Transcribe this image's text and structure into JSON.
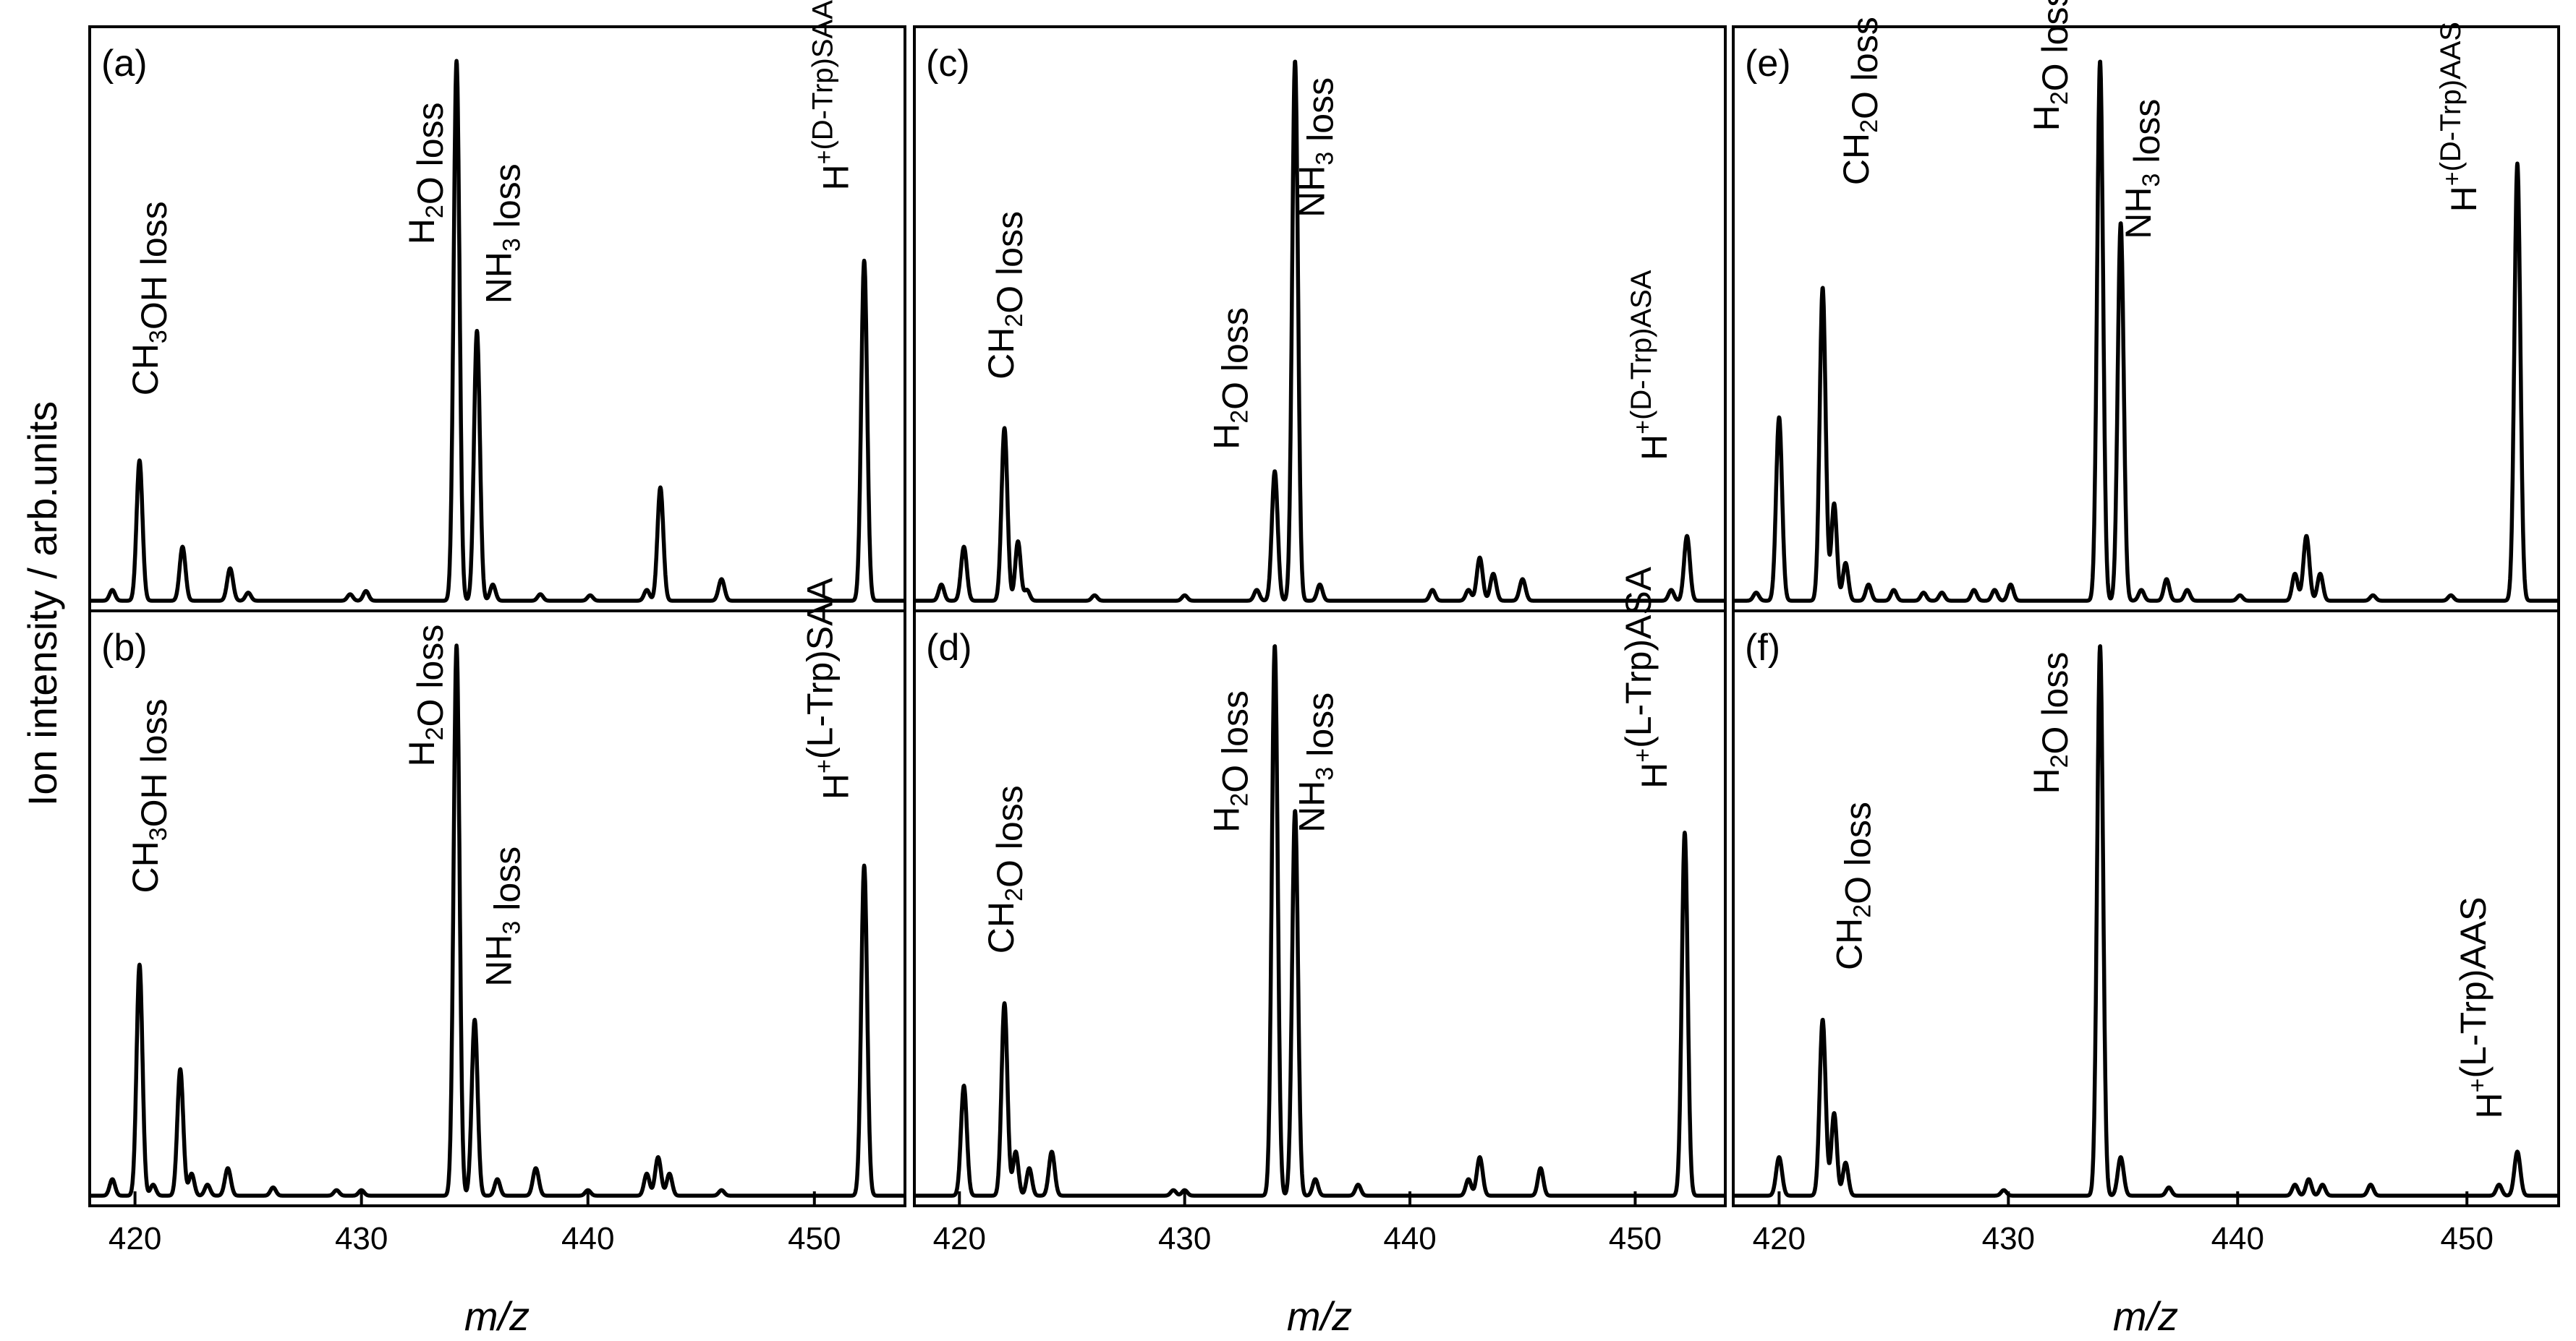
{
  "figure": {
    "ylabel": "Ion intensity / arb.units",
    "xlabel": "m/z"
  },
  "chart_data": [
    {
      "type": "line",
      "panel": "(a)",
      "xlim": [
        418,
        454
      ],
      "xticks": [
        420,
        430,
        440,
        450
      ],
      "ylim": [
        0,
        1.05
      ],
      "peaks": [
        {
          "x": 419.0,
          "y": 0.02,
          "w": 0.12
        },
        {
          "x": 420.2,
          "y": 0.26,
          "w": 0.13
        },
        {
          "x": 422.1,
          "y": 0.1,
          "w": 0.13
        },
        {
          "x": 424.2,
          "y": 0.06,
          "w": 0.13
        },
        {
          "x": 425.0,
          "y": 0.015,
          "w": 0.12
        },
        {
          "x": 429.5,
          "y": 0.012,
          "w": 0.12
        },
        {
          "x": 430.2,
          "y": 0.018,
          "w": 0.12
        },
        {
          "x": 434.2,
          "y": 1.0,
          "w": 0.13
        },
        {
          "x": 435.1,
          "y": 0.5,
          "w": 0.13
        },
        {
          "x": 435.8,
          "y": 0.03,
          "w": 0.12
        },
        {
          "x": 437.9,
          "y": 0.012,
          "w": 0.12
        },
        {
          "x": 440.1,
          "y": 0.01,
          "w": 0.12
        },
        {
          "x": 442.6,
          "y": 0.02,
          "w": 0.12
        },
        {
          "x": 443.2,
          "y": 0.21,
          "w": 0.13
        },
        {
          "x": 445.9,
          "y": 0.04,
          "w": 0.13
        },
        {
          "x": 452.2,
          "y": 0.63,
          "w": 0.13
        }
      ],
      "annotations": [
        {
          "parts": [
            {
              "t": "CH"
            },
            {
              "t": "3",
              "sub": true
            },
            {
              "t": "OH loss"
            }
          ],
          "x": 421.0,
          "y": 0.38
        },
        {
          "parts": [
            {
              "t": "H"
            },
            {
              "t": "2",
              "sub": true
            },
            {
              "t": "O loss"
            }
          ],
          "x": 433.2,
          "y": 0.66
        },
        {
          "parts": [
            {
              "t": "NH"
            },
            {
              "t": "3",
              "sub": true
            },
            {
              "t": " loss"
            }
          ],
          "x": 436.6,
          "y": 0.55
        },
        {
          "parts": [
            {
              "t": "H"
            },
            {
              "t": "+",
              "sup": true
            },
            {
              "t": "(",
              "small": true
            },
            {
              "t": "D",
              "small": true
            },
            {
              "t": "-Trp)SAA",
              "small": true
            }
          ],
          "x": 451.5,
          "y": 0.76
        }
      ]
    },
    {
      "type": "line",
      "panel": "(b)",
      "xlim": [
        418,
        454
      ],
      "xticks": [
        420,
        430,
        440,
        450
      ],
      "ylim": [
        0,
        1.05
      ],
      "peaks": [
        {
          "x": 419.0,
          "y": 0.03,
          "w": 0.12
        },
        {
          "x": 420.2,
          "y": 0.42,
          "w": 0.13
        },
        {
          "x": 420.8,
          "y": 0.02,
          "w": 0.12
        },
        {
          "x": 422.0,
          "y": 0.23,
          "w": 0.13
        },
        {
          "x": 422.5,
          "y": 0.04,
          "w": 0.12
        },
        {
          "x": 423.2,
          "y": 0.02,
          "w": 0.12
        },
        {
          "x": 424.1,
          "y": 0.05,
          "w": 0.13
        },
        {
          "x": 426.1,
          "y": 0.015,
          "w": 0.12
        },
        {
          "x": 428.9,
          "y": 0.01,
          "w": 0.12
        },
        {
          "x": 430.0,
          "y": 0.01,
          "w": 0.12
        },
        {
          "x": 434.2,
          "y": 1.0,
          "w": 0.13
        },
        {
          "x": 435.0,
          "y": 0.32,
          "w": 0.13
        },
        {
          "x": 436.0,
          "y": 0.03,
          "w": 0.12
        },
        {
          "x": 437.7,
          "y": 0.05,
          "w": 0.13
        },
        {
          "x": 440.0,
          "y": 0.01,
          "w": 0.12
        },
        {
          "x": 442.6,
          "y": 0.04,
          "w": 0.12
        },
        {
          "x": 443.1,
          "y": 0.07,
          "w": 0.13
        },
        {
          "x": 443.6,
          "y": 0.04,
          "w": 0.12
        },
        {
          "x": 445.9,
          "y": 0.01,
          "w": 0.12
        },
        {
          "x": 452.2,
          "y": 0.6,
          "w": 0.13
        }
      ],
      "annotations": [
        {
          "parts": [
            {
              "t": "CH"
            },
            {
              "t": "3",
              "sub": true
            },
            {
              "t": "OH loss"
            }
          ],
          "x": 421.0,
          "y": 0.55
        },
        {
          "parts": [
            {
              "t": "H"
            },
            {
              "t": "2",
              "sub": true
            },
            {
              "t": "O loss"
            }
          ],
          "x": 433.2,
          "y": 0.78
        },
        {
          "parts": [
            {
              "t": "NH"
            },
            {
              "t": "3",
              "sub": true
            },
            {
              "t": " loss"
            }
          ],
          "x": 436.6,
          "y": 0.38
        },
        {
          "parts": [
            {
              "t": "H"
            },
            {
              "t": "+",
              "sup": true
            },
            {
              "t": "(L-Trp)SAA"
            }
          ],
          "x": 451.5,
          "y": 0.72
        }
      ]
    },
    {
      "type": "line",
      "panel": "(c)",
      "xlim": [
        418,
        454
      ],
      "xticks": [
        420,
        430,
        440,
        450
      ],
      "ylim": [
        0,
        1.05
      ],
      "peaks": [
        {
          "x": 419.2,
          "y": 0.03,
          "w": 0.12
        },
        {
          "x": 420.2,
          "y": 0.1,
          "w": 0.13
        },
        {
          "x": 422.0,
          "y": 0.32,
          "w": 0.13
        },
        {
          "x": 422.6,
          "y": 0.11,
          "w": 0.12
        },
        {
          "x": 423.0,
          "y": 0.02,
          "w": 0.12
        },
        {
          "x": 426.0,
          "y": 0.01,
          "w": 0.12
        },
        {
          "x": 430.0,
          "y": 0.01,
          "w": 0.12
        },
        {
          "x": 433.2,
          "y": 0.02,
          "w": 0.12
        },
        {
          "x": 434.0,
          "y": 0.24,
          "w": 0.13
        },
        {
          "x": 434.9,
          "y": 1.0,
          "w": 0.13
        },
        {
          "x": 436.0,
          "y": 0.03,
          "w": 0.12
        },
        {
          "x": 441.0,
          "y": 0.02,
          "w": 0.12
        },
        {
          "x": 442.6,
          "y": 0.02,
          "w": 0.12
        },
        {
          "x": 443.1,
          "y": 0.08,
          "w": 0.13
        },
        {
          "x": 443.7,
          "y": 0.05,
          "w": 0.13
        },
        {
          "x": 445.0,
          "y": 0.04,
          "w": 0.13
        },
        {
          "x": 451.6,
          "y": 0.02,
          "w": 0.12
        },
        {
          "x": 452.3,
          "y": 0.12,
          "w": 0.13
        }
      ],
      "annotations": [
        {
          "parts": [
            {
              "t": "CH"
            },
            {
              "t": "2",
              "sub": true
            },
            {
              "t": "O loss"
            }
          ],
          "x": 422.4,
          "y": 0.41
        },
        {
          "parts": [
            {
              "t": "H"
            },
            {
              "t": "2",
              "sub": true
            },
            {
              "t": "O loss"
            }
          ],
          "x": 432.4,
          "y": 0.28
        },
        {
          "parts": [
            {
              "t": "NH"
            },
            {
              "t": "3",
              "sub": true
            },
            {
              "t": " loss"
            }
          ],
          "x": 436.2,
          "y": 0.71
        },
        {
          "parts": [
            {
              "t": "H"
            },
            {
              "t": "+",
              "sup": true
            },
            {
              "t": "(",
              "small": true
            },
            {
              "t": "D",
              "small": true
            },
            {
              "t": "-Trp)ASA",
              "small": true
            }
          ],
          "x": 451.4,
          "y": 0.26
        }
      ]
    },
    {
      "type": "line",
      "panel": "(d)",
      "xlim": [
        418,
        454
      ],
      "xticks": [
        420,
        430,
        440,
        450
      ],
      "ylim": [
        0,
        1.05
      ],
      "peaks": [
        {
          "x": 420.2,
          "y": 0.2,
          "w": 0.13
        },
        {
          "x": 422.0,
          "y": 0.35,
          "w": 0.13
        },
        {
          "x": 422.5,
          "y": 0.08,
          "w": 0.12
        },
        {
          "x": 423.1,
          "y": 0.05,
          "w": 0.12
        },
        {
          "x": 424.1,
          "y": 0.08,
          "w": 0.13
        },
        {
          "x": 429.5,
          "y": 0.01,
          "w": 0.12
        },
        {
          "x": 430.0,
          "y": 0.01,
          "w": 0.12
        },
        {
          "x": 434.0,
          "y": 1.0,
          "w": 0.13
        },
        {
          "x": 434.9,
          "y": 0.7,
          "w": 0.13
        },
        {
          "x": 435.8,
          "y": 0.03,
          "w": 0.12
        },
        {
          "x": 437.7,
          "y": 0.02,
          "w": 0.12
        },
        {
          "x": 442.6,
          "y": 0.03,
          "w": 0.12
        },
        {
          "x": 443.1,
          "y": 0.07,
          "w": 0.13
        },
        {
          "x": 445.8,
          "y": 0.05,
          "w": 0.12
        },
        {
          "x": 452.2,
          "y": 0.66,
          "w": 0.13
        }
      ],
      "annotations": [
        {
          "parts": [
            {
              "t": "CH"
            },
            {
              "t": "2",
              "sub": true
            },
            {
              "t": "O loss"
            }
          ],
          "x": 422.4,
          "y": 0.44
        },
        {
          "parts": [
            {
              "t": "H"
            },
            {
              "t": "2",
              "sub": true
            },
            {
              "t": "O loss"
            }
          ],
          "x": 432.4,
          "y": 0.66
        },
        {
          "parts": [
            {
              "t": "NH"
            },
            {
              "t": "3",
              "sub": true
            },
            {
              "t": " loss"
            }
          ],
          "x": 436.2,
          "y": 0.66
        },
        {
          "parts": [
            {
              "t": "H"
            },
            {
              "t": "+",
              "sup": true
            },
            {
              "t": "(L-Trp)ASA"
            }
          ],
          "x": 451.4,
          "y": 0.74
        }
      ]
    },
    {
      "type": "line",
      "panel": "(e)",
      "xlim": [
        418,
        454
      ],
      "xticks": [
        420,
        430,
        440,
        450
      ],
      "ylim": [
        0,
        1.05
      ],
      "peaks": [
        {
          "x": 419.0,
          "y": 0.015,
          "w": 0.12
        },
        {
          "x": 420.0,
          "y": 0.34,
          "w": 0.13
        },
        {
          "x": 421.9,
          "y": 0.58,
          "w": 0.13
        },
        {
          "x": 422.4,
          "y": 0.18,
          "w": 0.12
        },
        {
          "x": 422.9,
          "y": 0.07,
          "w": 0.12
        },
        {
          "x": 423.9,
          "y": 0.03,
          "w": 0.12
        },
        {
          "x": 425.0,
          "y": 0.02,
          "w": 0.12
        },
        {
          "x": 426.3,
          "y": 0.015,
          "w": 0.12
        },
        {
          "x": 427.1,
          "y": 0.015,
          "w": 0.12
        },
        {
          "x": 428.5,
          "y": 0.02,
          "w": 0.12
        },
        {
          "x": 429.4,
          "y": 0.02,
          "w": 0.12
        },
        {
          "x": 430.1,
          "y": 0.03,
          "w": 0.12
        },
        {
          "x": 434.0,
          "y": 1.0,
          "w": 0.13
        },
        {
          "x": 434.9,
          "y": 0.7,
          "w": 0.13
        },
        {
          "x": 435.8,
          "y": 0.02,
          "w": 0.12
        },
        {
          "x": 436.9,
          "y": 0.04,
          "w": 0.12
        },
        {
          "x": 437.8,
          "y": 0.02,
          "w": 0.12
        },
        {
          "x": 440.1,
          "y": 0.01,
          "w": 0.12
        },
        {
          "x": 442.5,
          "y": 0.05,
          "w": 0.12
        },
        {
          "x": 443.0,
          "y": 0.12,
          "w": 0.13
        },
        {
          "x": 443.6,
          "y": 0.05,
          "w": 0.12
        },
        {
          "x": 445.9,
          "y": 0.01,
          "w": 0.12
        },
        {
          "x": 449.3,
          "y": 0.01,
          "w": 0.12
        },
        {
          "x": 452.2,
          "y": 0.81,
          "w": 0.13
        }
      ],
      "annotations": [
        {
          "parts": [
            {
              "t": "CH"
            },
            {
              "t": "2",
              "sub": true
            },
            {
              "t": "O loss"
            }
          ],
          "x": 423.9,
          "y": 0.77
        },
        {
          "parts": [
            {
              "t": "H"
            },
            {
              "t": "2",
              "sub": true
            },
            {
              "t": "O loss"
            }
          ],
          "x": 432.2,
          "y": 0.87
        },
        {
          "parts": [
            {
              "t": "NH"
            },
            {
              "t": "3",
              "sub": true
            },
            {
              "t": " loss"
            }
          ],
          "x": 436.2,
          "y": 0.67
        },
        {
          "parts": [
            {
              "t": "H"
            },
            {
              "t": "+",
              "sup": true
            },
            {
              "t": "(",
              "small": true
            },
            {
              "t": "D",
              "small": true
            },
            {
              "t": "-Trp)AAS",
              "small": true
            }
          ],
          "x": 450.4,
          "y": 0.72
        }
      ]
    },
    {
      "type": "line",
      "panel": "(f)",
      "xlim": [
        418,
        454
      ],
      "xticks": [
        420,
        430,
        440,
        450
      ],
      "ylim": [
        0,
        1.05
      ],
      "peaks": [
        {
          "x": 420.0,
          "y": 0.07,
          "w": 0.13
        },
        {
          "x": 421.9,
          "y": 0.32,
          "w": 0.13
        },
        {
          "x": 422.4,
          "y": 0.15,
          "w": 0.12
        },
        {
          "x": 422.9,
          "y": 0.06,
          "w": 0.12
        },
        {
          "x": 429.8,
          "y": 0.01,
          "w": 0.12
        },
        {
          "x": 434.0,
          "y": 1.0,
          "w": 0.13
        },
        {
          "x": 434.9,
          "y": 0.07,
          "w": 0.13
        },
        {
          "x": 437.0,
          "y": 0.015,
          "w": 0.12
        },
        {
          "x": 442.5,
          "y": 0.02,
          "w": 0.12
        },
        {
          "x": 443.1,
          "y": 0.03,
          "w": 0.12
        },
        {
          "x": 443.7,
          "y": 0.02,
          "w": 0.12
        },
        {
          "x": 445.8,
          "y": 0.02,
          "w": 0.12
        },
        {
          "x": 451.4,
          "y": 0.02,
          "w": 0.12
        },
        {
          "x": 452.2,
          "y": 0.08,
          "w": 0.13
        }
      ],
      "annotations": [
        {
          "parts": [
            {
              "t": "CH"
            },
            {
              "t": "2",
              "sub": true
            },
            {
              "t": "O loss"
            }
          ],
          "x": 423.6,
          "y": 0.41
        },
        {
          "parts": [
            {
              "t": "H"
            },
            {
              "t": "2",
              "sub": true
            },
            {
              "t": "O loss"
            }
          ],
          "x": 432.2,
          "y": 0.73
        },
        {
          "parts": [
            {
              "t": "H"
            },
            {
              "t": "+",
              "sup": true
            },
            {
              "t": "(L-Trp)AAS"
            }
          ],
          "x": 451.5,
          "y": 0.14
        }
      ]
    }
  ]
}
